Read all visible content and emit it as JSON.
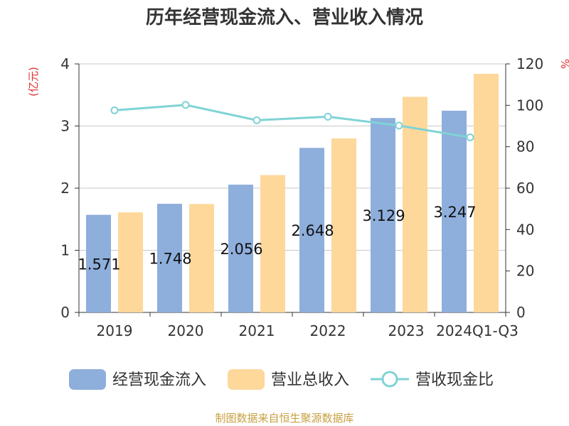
{
  "title": "历年经营现金流入、营业收入情况",
  "source": "制图数据来自恒生聚源数据库",
  "chart_data": {
    "type": "bar",
    "title": "历年经营现金流入、营业收入情况",
    "categories": [
      "2019",
      "2020",
      "2021",
      "2022",
      "2023",
      "2024Q1-Q3"
    ],
    "left_axis": {
      "unit": "(亿元)",
      "ylim": [
        0,
        4
      ],
      "ticks": [
        "0",
        "1",
        "2",
        "3",
        "4"
      ]
    },
    "right_axis": {
      "unit": "%",
      "ylim": [
        0,
        120
      ],
      "ticks": [
        "0",
        "20",
        "40",
        "60",
        "80",
        "100",
        "120"
      ]
    },
    "grid": true,
    "legend_position": "bottom",
    "series": [
      {
        "name": "经营现金流入",
        "type": "bar",
        "axis": "left",
        "color": "#8eaedc",
        "values": [
          1.571,
          1.748,
          2.056,
          2.648,
          3.129,
          3.247
        ],
        "labels": [
          "1.571",
          "1.748",
          "2.056",
          "2.648",
          "3.129",
          "3.247"
        ]
      },
      {
        "name": "营业总收入",
        "type": "bar",
        "axis": "left",
        "color": "#fdd89a",
        "values": [
          1.61,
          1.745,
          2.21,
          2.8,
          3.47,
          3.84
        ]
      },
      {
        "name": "营收现金比",
        "type": "line",
        "axis": "right",
        "color": "#7fd3d6",
        "values": [
          97.6,
          100.2,
          92.8,
          94.5,
          90.2,
          84.5
        ]
      }
    ]
  }
}
